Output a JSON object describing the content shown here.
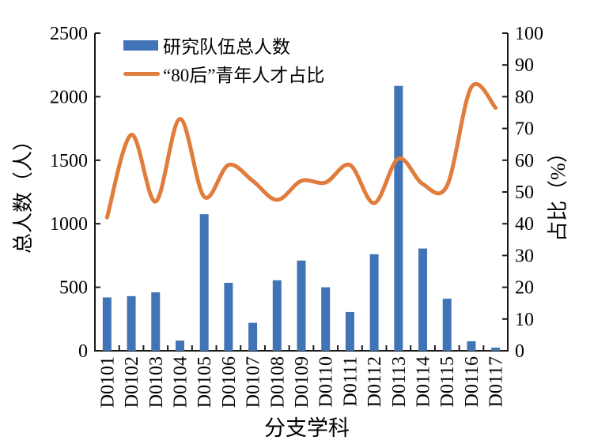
{
  "chart_data": {
    "type": "bar",
    "subtype": "combo-bar-line-dual-axis",
    "categories": [
      "D0101",
      "D0102",
      "D0103",
      "D0104",
      "D0105",
      "D0106",
      "D0107",
      "D0108",
      "D0109",
      "D0110",
      "D0111",
      "D0112",
      "D0113",
      "D0114",
      "D0115",
      "D0116",
      "D0117"
    ],
    "series": [
      {
        "name": "研究队伍总人数",
        "type": "bar",
        "axis": "left",
        "color": "#4173b7",
        "values": [
          420,
          430,
          460,
          80,
          1075,
          535,
          220,
          555,
          710,
          500,
          305,
          760,
          2085,
          805,
          410,
          75,
          25
        ]
      },
      {
        "name": "“80后”青年人才占比",
        "type": "line",
        "axis": "right",
        "color": "#e07c3c",
        "values": [
          42,
          68,
          47,
          73,
          48.5,
          58.5,
          53.5,
          47.5,
          53.5,
          53,
          58.5,
          46.5,
          60.5,
          52.5,
          52,
          83,
          76.5
        ]
      }
    ],
    "left_axis": {
      "title": "总人数（人）",
      "min": 0,
      "max": 2500,
      "step": 500,
      "tick_labels": [
        "0",
        "500",
        "1000",
        "1500",
        "2000",
        "2500"
      ]
    },
    "right_axis": {
      "title": "占比（%）",
      "min": 0,
      "max": 100,
      "step": 10,
      "tick_labels": [
        "0",
        "10",
        "20",
        "30",
        "40",
        "50",
        "60",
        "70",
        "80",
        "90",
        "100"
      ]
    },
    "x_axis": {
      "title": "分支学科"
    },
    "grid": false,
    "legend_position": "inside-top-left"
  },
  "legend": {
    "bar_label": "研究队伍总人数",
    "line_label": "“80后”青年人才占比"
  },
  "colors": {
    "bar": "#4173b7",
    "line": "#e07c3c",
    "axis": "#1a1a1a",
    "text": "#000000",
    "background": "#ffffff"
  }
}
